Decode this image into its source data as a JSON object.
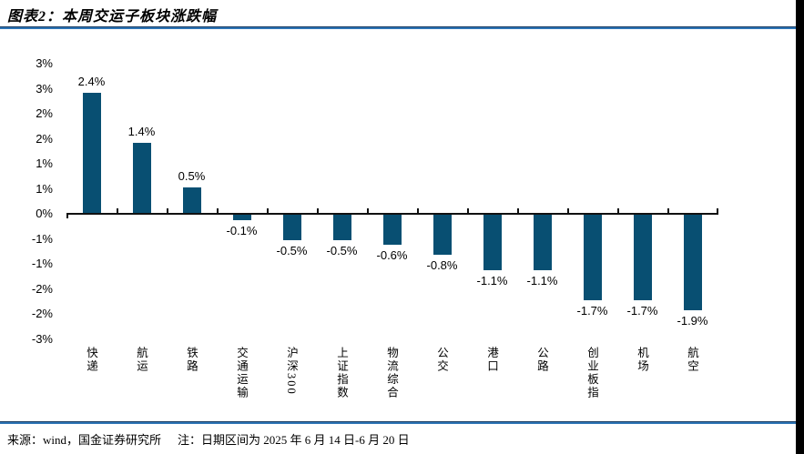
{
  "title": "图表2：本周交运子板块涨跌幅",
  "footer": {
    "source": "来源：wind，国金证券研究所",
    "note": "注：日期区间为 2025 年 6 月 14 日-6 月 20 日"
  },
  "colors": {
    "bar": "#084F72",
    "rule_dark": "#16395f",
    "rule_blue": "#2e75b6",
    "axis": "#111111",
    "page_edge": "#000000"
  },
  "chart_data": {
    "type": "bar",
    "title": "图表2：本周交运子板块涨跌幅",
    "categories": [
      "快递",
      "航运",
      "铁路",
      "交通运输",
      "沪深300",
      "上证指数",
      "物流综合",
      "公交",
      "港口",
      "公路",
      "创业板指",
      "机场",
      "航空"
    ],
    "values": [
      2.4,
      1.4,
      0.5,
      -0.1,
      -0.5,
      -0.5,
      -0.6,
      -0.8,
      -1.1,
      -1.1,
      -1.7,
      -1.7,
      -1.9
    ],
    "data_labels": [
      "2.4%",
      "1.4%",
      "0.5%",
      "-0.1%",
      "-0.5%",
      "-0.5%",
      "-0.6%",
      "-0.8%",
      "-1.1%",
      "-1.1%",
      "-1.7%",
      "-1.7%",
      "-1.9%"
    ],
    "unit": "%",
    "y_ticks": [
      {
        "value": 3.0,
        "label": "3%"
      },
      {
        "value": 2.5,
        "label": "3%"
      },
      {
        "value": 2.0,
        "label": "2%"
      },
      {
        "value": 1.5,
        "label": "2%"
      },
      {
        "value": 1.0,
        "label": "1%"
      },
      {
        "value": 0.5,
        "label": "1%"
      },
      {
        "value": 0.0,
        "label": "0%"
      },
      {
        "value": -0.5,
        "label": "-1%"
      },
      {
        "value": -1.0,
        "label": "-1%"
      },
      {
        "value": -1.5,
        "label": "-2%"
      },
      {
        "value": -2.0,
        "label": "-2%"
      },
      {
        "value": -2.5,
        "label": "-3%"
      }
    ],
    "ylim": [
      -2.5,
      3.0
    ],
    "grid": false,
    "legend": false,
    "bar_color": "#084F72",
    "data_label_position": "outside-end"
  }
}
